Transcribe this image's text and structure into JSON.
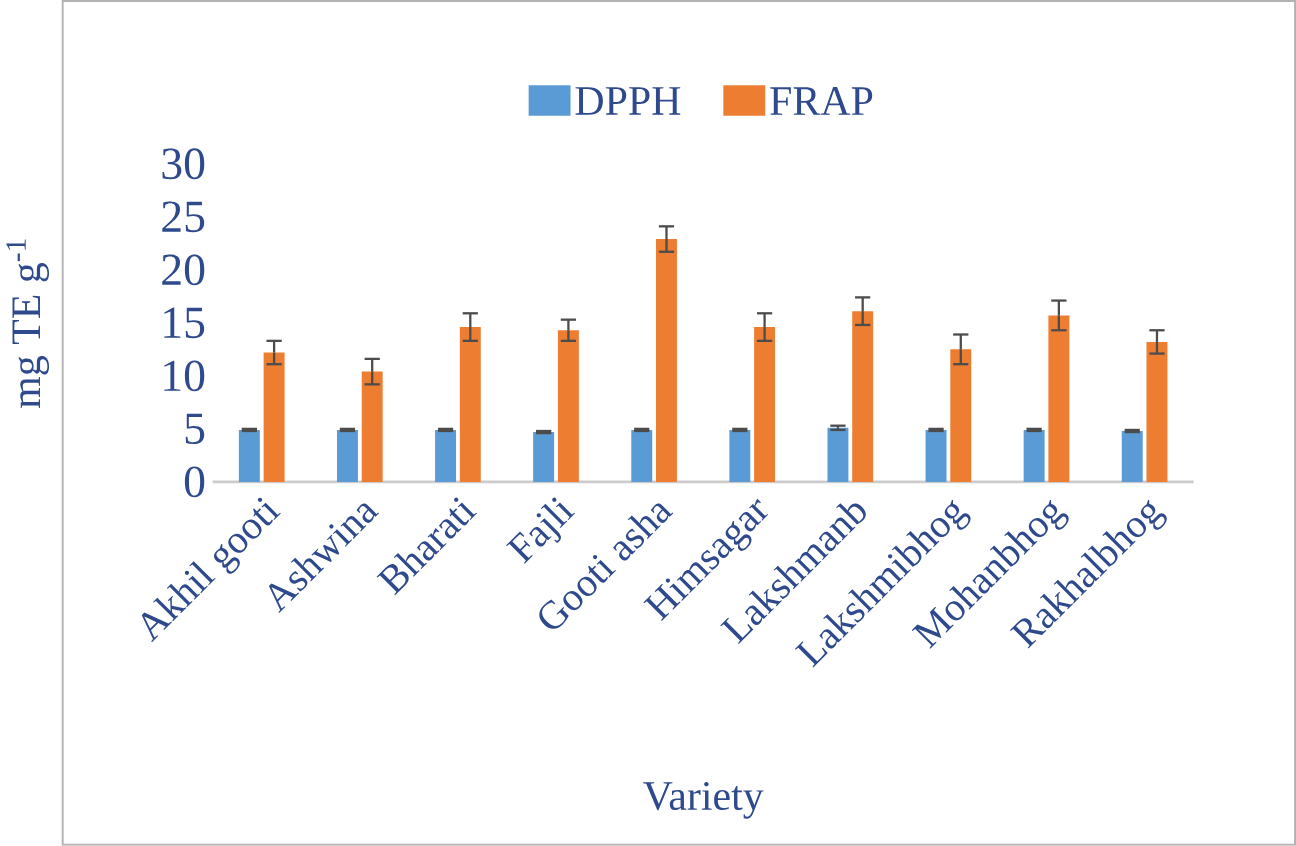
{
  "chart_data": {
    "type": "bar",
    "xlabel": "Variety",
    "ylabel": "mg TE g$^{-1}$",
    "categories": [
      "Akhil gooti",
      "Ashwina",
      "Bharati",
      "Fajli",
      "Gooti asha",
      "Himsagar",
      "Lakshmanb",
      "Lakshmibhog",
      "Mohanbhog",
      "Rakhalbhog"
    ],
    "series": [
      {
        "name": "DPPH",
        "color": "#5b9bd5",
        "values": [
          4.9,
          4.9,
          4.9,
          4.7,
          4.9,
          4.9,
          5.1,
          4.9,
          4.9,
          4.8
        ],
        "errors": [
          0.1,
          0.1,
          0.1,
          0.1,
          0.1,
          0.1,
          0.2,
          0.1,
          0.1,
          0.1
        ]
      },
      {
        "name": "FRAP",
        "color": "#ed7d31",
        "values": [
          12.2,
          10.4,
          14.6,
          14.3,
          22.9,
          14.6,
          16.1,
          12.5,
          15.7,
          13.2
        ],
        "errors": [
          1.1,
          1.2,
          1.3,
          1.0,
          1.2,
          1.3,
          1.3,
          1.4,
          1.4,
          1.1
        ]
      }
    ],
    "ylim": [
      0,
      30
    ],
    "yticks": [
      0,
      5,
      10,
      15,
      20,
      25,
      30
    ],
    "legend": "top"
  }
}
